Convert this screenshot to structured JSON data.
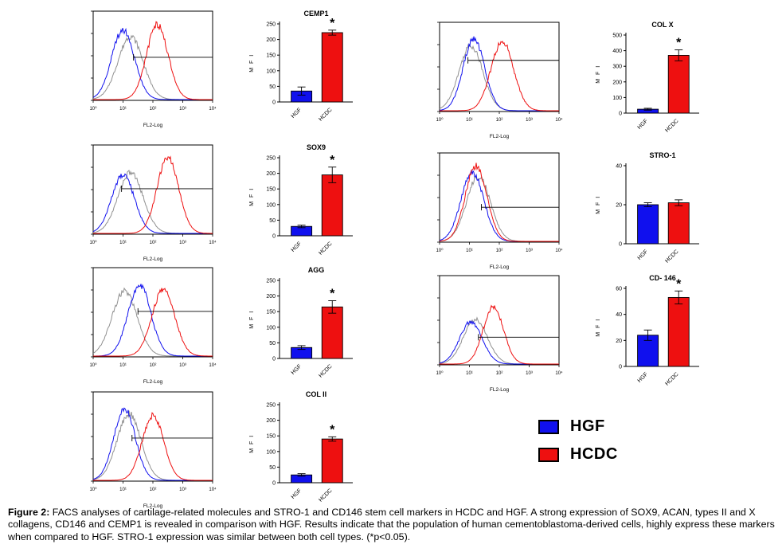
{
  "figure": {
    "caption_label": "Figure 2:",
    "caption_text": " FACS analyses of cartilage-related molecules and STRO-1 and CD146 stem cell markers in HCDC and HGF. A strong expression of SOX9, ACAN, types II and X collagens, CD146 and CEMP1 is revealed in comparison with HGF. Results indicate that the population of human cementoblastoma-derived cells, highly express these markers when compared to HGF. STRO-1 expression was similar between both cell types. (*p<0.05)."
  },
  "legend": {
    "items": [
      {
        "label": "HGF",
        "color": "#1010ee"
      },
      {
        "label": "HCDC",
        "color": "#ee1010"
      }
    ]
  },
  "colors": {
    "hgf": "#1010ee",
    "hcdc": "#ee1010",
    "isotype": "#909090",
    "axis": "#000000"
  },
  "chart_data": [
    {
      "id": "cemp1",
      "side": "left",
      "row": 1,
      "histogram": {
        "type": "line",
        "xlabel": "FL2-Log",
        "xticks": [
          "10⁰",
          "10¹",
          "10²",
          "10³",
          "10⁴"
        ],
        "series": [
          {
            "name": "isotype",
            "color": "#909090",
            "peak": 1.25,
            "sigma": 0.42,
            "height": 0.78
          },
          {
            "name": "HGF",
            "color": "#1010ee",
            "peak": 1.0,
            "sigma": 0.38,
            "height": 0.86
          },
          {
            "name": "HCDC",
            "color": "#ee1010",
            "peak": 2.15,
            "sigma": 0.36,
            "height": 0.92
          }
        ],
        "gate": {
          "x": 1.35,
          "level": 0.52
        }
      },
      "bar": {
        "type": "bar",
        "title": "CEMP1",
        "ylabel": "M F I",
        "categories": [
          "HGF",
          "HCDC"
        ],
        "values": [
          35,
          222
        ],
        "errors": [
          13,
          8
        ],
        "ylim": [
          0,
          250
        ],
        "yticks": [
          0,
          50,
          100,
          150,
          200,
          250
        ],
        "significant": true
      }
    },
    {
      "id": "colx",
      "side": "right",
      "row": 1,
      "histogram": {
        "type": "line",
        "xlabel": "FL2-Log",
        "xticks": [
          "10⁰",
          "10¹",
          "10²",
          "10³",
          "10⁴"
        ],
        "series": [
          {
            "name": "isotype",
            "color": "#909090",
            "peak": 1.05,
            "sigma": 0.4,
            "height": 0.8
          },
          {
            "name": "HGF",
            "color": "#1010ee",
            "peak": 1.15,
            "sigma": 0.36,
            "height": 0.88
          },
          {
            "name": "HCDC",
            "color": "#ee1010",
            "peak": 2.1,
            "sigma": 0.38,
            "height": 0.85
          }
        ],
        "gate": {
          "x": 0.95,
          "level": 0.62
        }
      },
      "bar": {
        "type": "bar",
        "title": "COL X",
        "ylabel": "M F I",
        "categories": [
          "HGF",
          "HCDC"
        ],
        "values": [
          25,
          370
        ],
        "errors": [
          6,
          35
        ],
        "ylim": [
          0,
          500
        ],
        "yticks": [
          0,
          100,
          200,
          300,
          400,
          500
        ],
        "significant": true
      }
    },
    {
      "id": "sox9",
      "side": "left",
      "row": 2,
      "histogram": {
        "type": "line",
        "xlabel": "FL2-Log",
        "xticks": [
          "10⁰",
          "10¹",
          "10²",
          "10³",
          "10⁴"
        ],
        "series": [
          {
            "name": "isotype",
            "color": "#909090",
            "peak": 1.25,
            "sigma": 0.42,
            "height": 0.75
          },
          {
            "name": "HGF",
            "color": "#1010ee",
            "peak": 1.0,
            "sigma": 0.38,
            "height": 0.72
          },
          {
            "name": "HCDC",
            "color": "#ee1010",
            "peak": 2.5,
            "sigma": 0.36,
            "height": 0.93
          }
        ],
        "gate": {
          "x": 0.95,
          "level": 0.55
        }
      },
      "bar": {
        "type": "bar",
        "title": "SOX9",
        "ylabel": "M F I",
        "categories": [
          "HGF",
          "HCDC"
        ],
        "values": [
          30,
          195
        ],
        "errors": [
          4,
          25
        ],
        "ylim": [
          0,
          250
        ],
        "yticks": [
          0,
          50,
          100,
          150,
          200,
          250
        ],
        "significant": true
      }
    },
    {
      "id": "stro1",
      "side": "right",
      "row": 2,
      "histogram": {
        "type": "line",
        "xlabel": "FL2-Log",
        "xticks": [
          "10⁰",
          "10¹",
          "10²",
          "10³",
          "10⁴"
        ],
        "series": [
          {
            "name": "isotype",
            "color": "#909090",
            "peak": 1.3,
            "sigma": 0.4,
            "height": 0.8
          },
          {
            "name": "HGF",
            "color": "#1010ee",
            "peak": 1.1,
            "sigma": 0.38,
            "height": 0.85
          },
          {
            "name": "HCDC",
            "color": "#ee1010",
            "peak": 1.22,
            "sigma": 0.36,
            "height": 0.93
          }
        ],
        "gate": {
          "x": 1.4,
          "level": 0.42
        }
      },
      "bar": {
        "type": "bar",
        "title": "STRO-1",
        "ylabel": "M F I",
        "categories": [
          "HGF",
          "HCDC"
        ],
        "values": [
          20,
          21
        ],
        "errors": [
          1,
          1.5
        ],
        "ylim": [
          0,
          40
        ],
        "yticks": [
          0,
          20,
          40
        ],
        "significant": false
      }
    },
    {
      "id": "agg",
      "side": "left",
      "row": 3,
      "histogram": {
        "type": "line",
        "xlabel": "FL2-Log",
        "xticks": [
          "10⁰",
          "10¹",
          "10²",
          "10³",
          "10⁴"
        ],
        "series": [
          {
            "name": "isotype",
            "color": "#909090",
            "peak": 1.05,
            "sigma": 0.42,
            "height": 0.8
          },
          {
            "name": "HGF",
            "color": "#1010ee",
            "peak": 1.55,
            "sigma": 0.38,
            "height": 0.88
          },
          {
            "name": "HCDC",
            "color": "#ee1010",
            "peak": 2.35,
            "sigma": 0.38,
            "height": 0.82
          }
        ],
        "gate": {
          "x": 1.5,
          "level": 0.55
        }
      },
      "bar": {
        "type": "bar",
        "title": "AGG",
        "ylabel": "M F I",
        "categories": [
          "HGF",
          "HCDC"
        ],
        "values": [
          35,
          165
        ],
        "errors": [
          6,
          20
        ],
        "ylim": [
          0,
          250
        ],
        "yticks": [
          0,
          50,
          100,
          150,
          200,
          250
        ],
        "significant": true
      }
    },
    {
      "id": "cd146",
      "side": "right",
      "row": 3,
      "histogram": {
        "type": "line",
        "xlabel": "FL2-Log",
        "xticks": [
          "10⁰",
          "10¹",
          "10²",
          "10³",
          "10⁴"
        ],
        "series": [
          {
            "name": "isotype",
            "color": "#909090",
            "peak": 1.2,
            "sigma": 0.4,
            "height": 0.55
          },
          {
            "name": "HGF",
            "color": "#1010ee",
            "peak": 1.05,
            "sigma": 0.38,
            "height": 0.52
          },
          {
            "name": "HCDC",
            "color": "#ee1010",
            "peak": 1.8,
            "sigma": 0.34,
            "height": 0.7
          }
        ],
        "gate": {
          "x": 1.3,
          "level": 0.33
        }
      },
      "bar": {
        "type": "bar",
        "title": "CD- 146",
        "ylabel": "M F I",
        "categories": [
          "HGF",
          "HCDC"
        ],
        "values": [
          24,
          53
        ],
        "errors": [
          4,
          5
        ],
        "ylim": [
          0,
          60
        ],
        "yticks": [
          0,
          20,
          40,
          60
        ],
        "significant": true
      }
    },
    {
      "id": "colii",
      "side": "left",
      "row": 4,
      "histogram": {
        "type": "line",
        "xlabel": "FL2-Log",
        "xticks": [
          "10⁰",
          "10¹",
          "10²",
          "10³",
          "10⁴"
        ],
        "series": [
          {
            "name": "isotype",
            "color": "#909090",
            "peak": 1.2,
            "sigma": 0.4,
            "height": 0.82
          },
          {
            "name": "HGF",
            "color": "#1010ee",
            "peak": 1.05,
            "sigma": 0.36,
            "height": 0.88
          },
          {
            "name": "HCDC",
            "color": "#ee1010",
            "peak": 2.0,
            "sigma": 0.36,
            "height": 0.8
          }
        ],
        "gate": {
          "x": 1.3,
          "level": 0.52
        }
      },
      "bar": {
        "type": "bar",
        "title": "COL II",
        "ylabel": "M F I",
        "categories": [
          "HGF",
          "HCDC"
        ],
        "values": [
          25,
          140
        ],
        "errors": [
          4,
          7
        ],
        "ylim": [
          0,
          250
        ],
        "yticks": [
          0,
          50,
          100,
          150,
          200,
          250
        ],
        "significant": true
      }
    }
  ]
}
